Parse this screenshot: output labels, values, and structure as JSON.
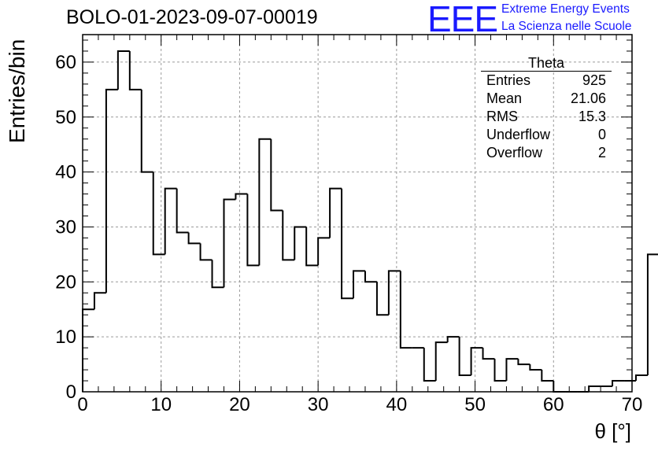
{
  "title": "BOLO-01-2023-09-07-00019",
  "logo": {
    "mark": "EEE",
    "line1": "Extreme Energy Events",
    "line2": "La Scienza nelle Scuole",
    "color": "#1a1aff"
  },
  "stats_box": {
    "name": "Theta",
    "rows": [
      {
        "label": "Entries",
        "value": "925"
      },
      {
        "label": "Mean",
        "value": "21.06"
      },
      {
        "label": "RMS",
        "value": "15.3"
      },
      {
        "label": "Underflow",
        "value": "0"
      },
      {
        "label": "Overflow",
        "value": "2"
      }
    ]
  },
  "chart_data": {
    "type": "bar",
    "histogram_style": "step",
    "title": "BOLO-01-2023-09-07-00019",
    "xlabel": "θ [°]",
    "ylabel": "Entries/bin",
    "xlim": [
      0,
      70
    ],
    "ylim": [
      0,
      65
    ],
    "bin_width": 1.5,
    "x_bin_edges_start": 0,
    "values": [
      15,
      18,
      55,
      62,
      55,
      40,
      25,
      37,
      29,
      27,
      24,
      19,
      35,
      36,
      23,
      46,
      33,
      24,
      30,
      23,
      28,
      37,
      17,
      22,
      20,
      14,
      22,
      8,
      8,
      2,
      9,
      10,
      3,
      8,
      6,
      2,
      6,
      5,
      4,
      2,
      0,
      0,
      0,
      1,
      1,
      2,
      2,
      3,
      25
    ],
    "x_ticks": [
      "0",
      "10",
      "20",
      "30",
      "40",
      "50",
      "60",
      "70"
    ],
    "y_ticks": [
      "0",
      "10",
      "20",
      "30",
      "40",
      "50",
      "60"
    ],
    "grid": true,
    "line_color": "#000000"
  }
}
